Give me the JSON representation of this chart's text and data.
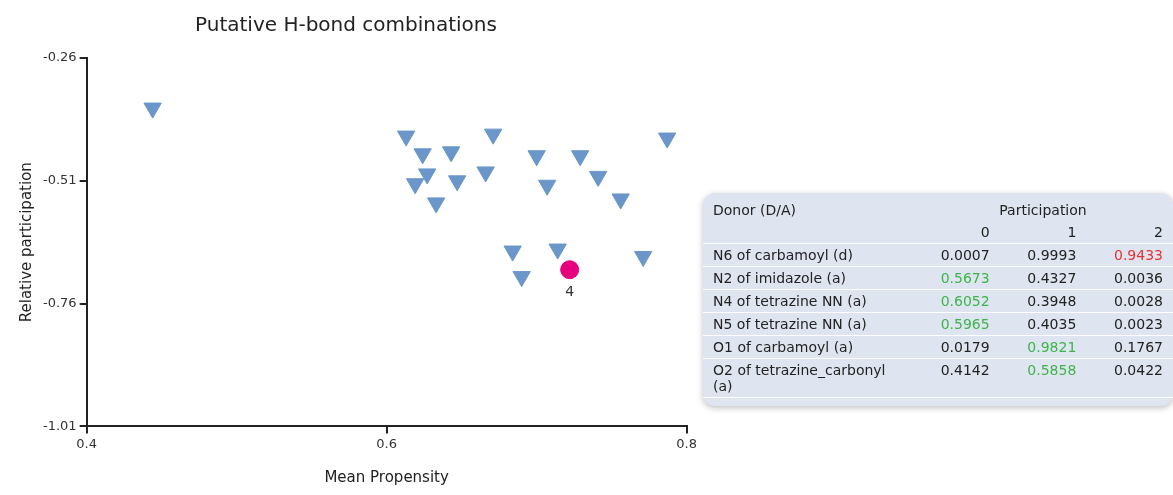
{
  "chart_data": [
    {
      "type": "scatter",
      "title": "Putative H-bond combinations",
      "xlabel": "Mean Propensity",
      "ylabel": "Relative participation",
      "xlim": [
        0.4,
        0.8
      ],
      "xticks": [
        0.4,
        0.6,
        0.8
      ],
      "ylim": [
        -1.01,
        -0.26
      ],
      "yticks": [
        -0.26,
        -0.51,
        -0.76,
        -1.01
      ],
      "grid": false,
      "legend": false,
      "series": [
        {
          "color": "#6b96c9",
          "marker": "triangle",
          "x": [
            0.444,
            0.613,
            0.624,
            0.643,
            0.671,
            0.787,
            0.627,
            0.619,
            0.647,
            0.666,
            0.7,
            0.729,
            0.707,
            0.741,
            0.633,
            0.756,
            0.684,
            0.714,
            0.771,
            0.69
          ],
          "values": [
            -0.362,
            -0.419,
            -0.455,
            -0.451,
            -0.415,
            -0.423,
            -0.496,
            -0.516,
            -0.51,
            -0.492,
            -0.459,
            -0.459,
            -0.519,
            -0.501,
            -0.555,
            -0.547,
            -0.653,
            -0.649,
            -0.664,
            -0.705
          ]
        },
        {
          "color": "#e6007e",
          "marker": "circle",
          "x": [
            0.722
          ],
          "values": [
            -0.691
          ]
        }
      ],
      "annotations": [
        {
          "text": "4",
          "x": 0.722,
          "y": -0.691
        }
      ]
    },
    {
      "type": "other",
      "ylabel": "Donor (D/A)",
      "xlabel": "Participation",
      "categories": [
        "0",
        "1",
        "2"
      ],
      "y_categories": [
        "N6 of carbamoyl (d)",
        "N2 of imidazole (a)",
        "N4 of tetrazine NN (a)",
        "N5 of tetrazine NN (a)",
        "O1 of carbamoyl (a)",
        "O2 of tetrazine_carbonyl (a)"
      ],
      "cell_labels": [
        [
          "0.0007",
          "0.9993",
          "0.9433"
        ],
        [
          "0.5673",
          "0.4327",
          "0.0036"
        ],
        [
          "0.6052",
          "0.3948",
          "0.0028"
        ],
        [
          "0.5965",
          "0.4035",
          "0.0023"
        ],
        [
          "0.0179",
          "0.9821",
          "0.1767"
        ],
        [
          "0.4142",
          "0.5858",
          "0.0422"
        ]
      ],
      "colors": [
        [
          "#222222",
          "#222222",
          "#e8302f"
        ],
        [
          "#3cb44a",
          "#222222",
          "#222222"
        ],
        [
          "#3cb44a",
          "#222222",
          "#222222"
        ],
        [
          "#3cb44a",
          "#222222",
          "#222222"
        ],
        [
          "#222222",
          "#3cb44a",
          "#222222"
        ],
        [
          "#222222",
          "#3cb44a",
          "#222222"
        ]
      ]
    }
  ]
}
